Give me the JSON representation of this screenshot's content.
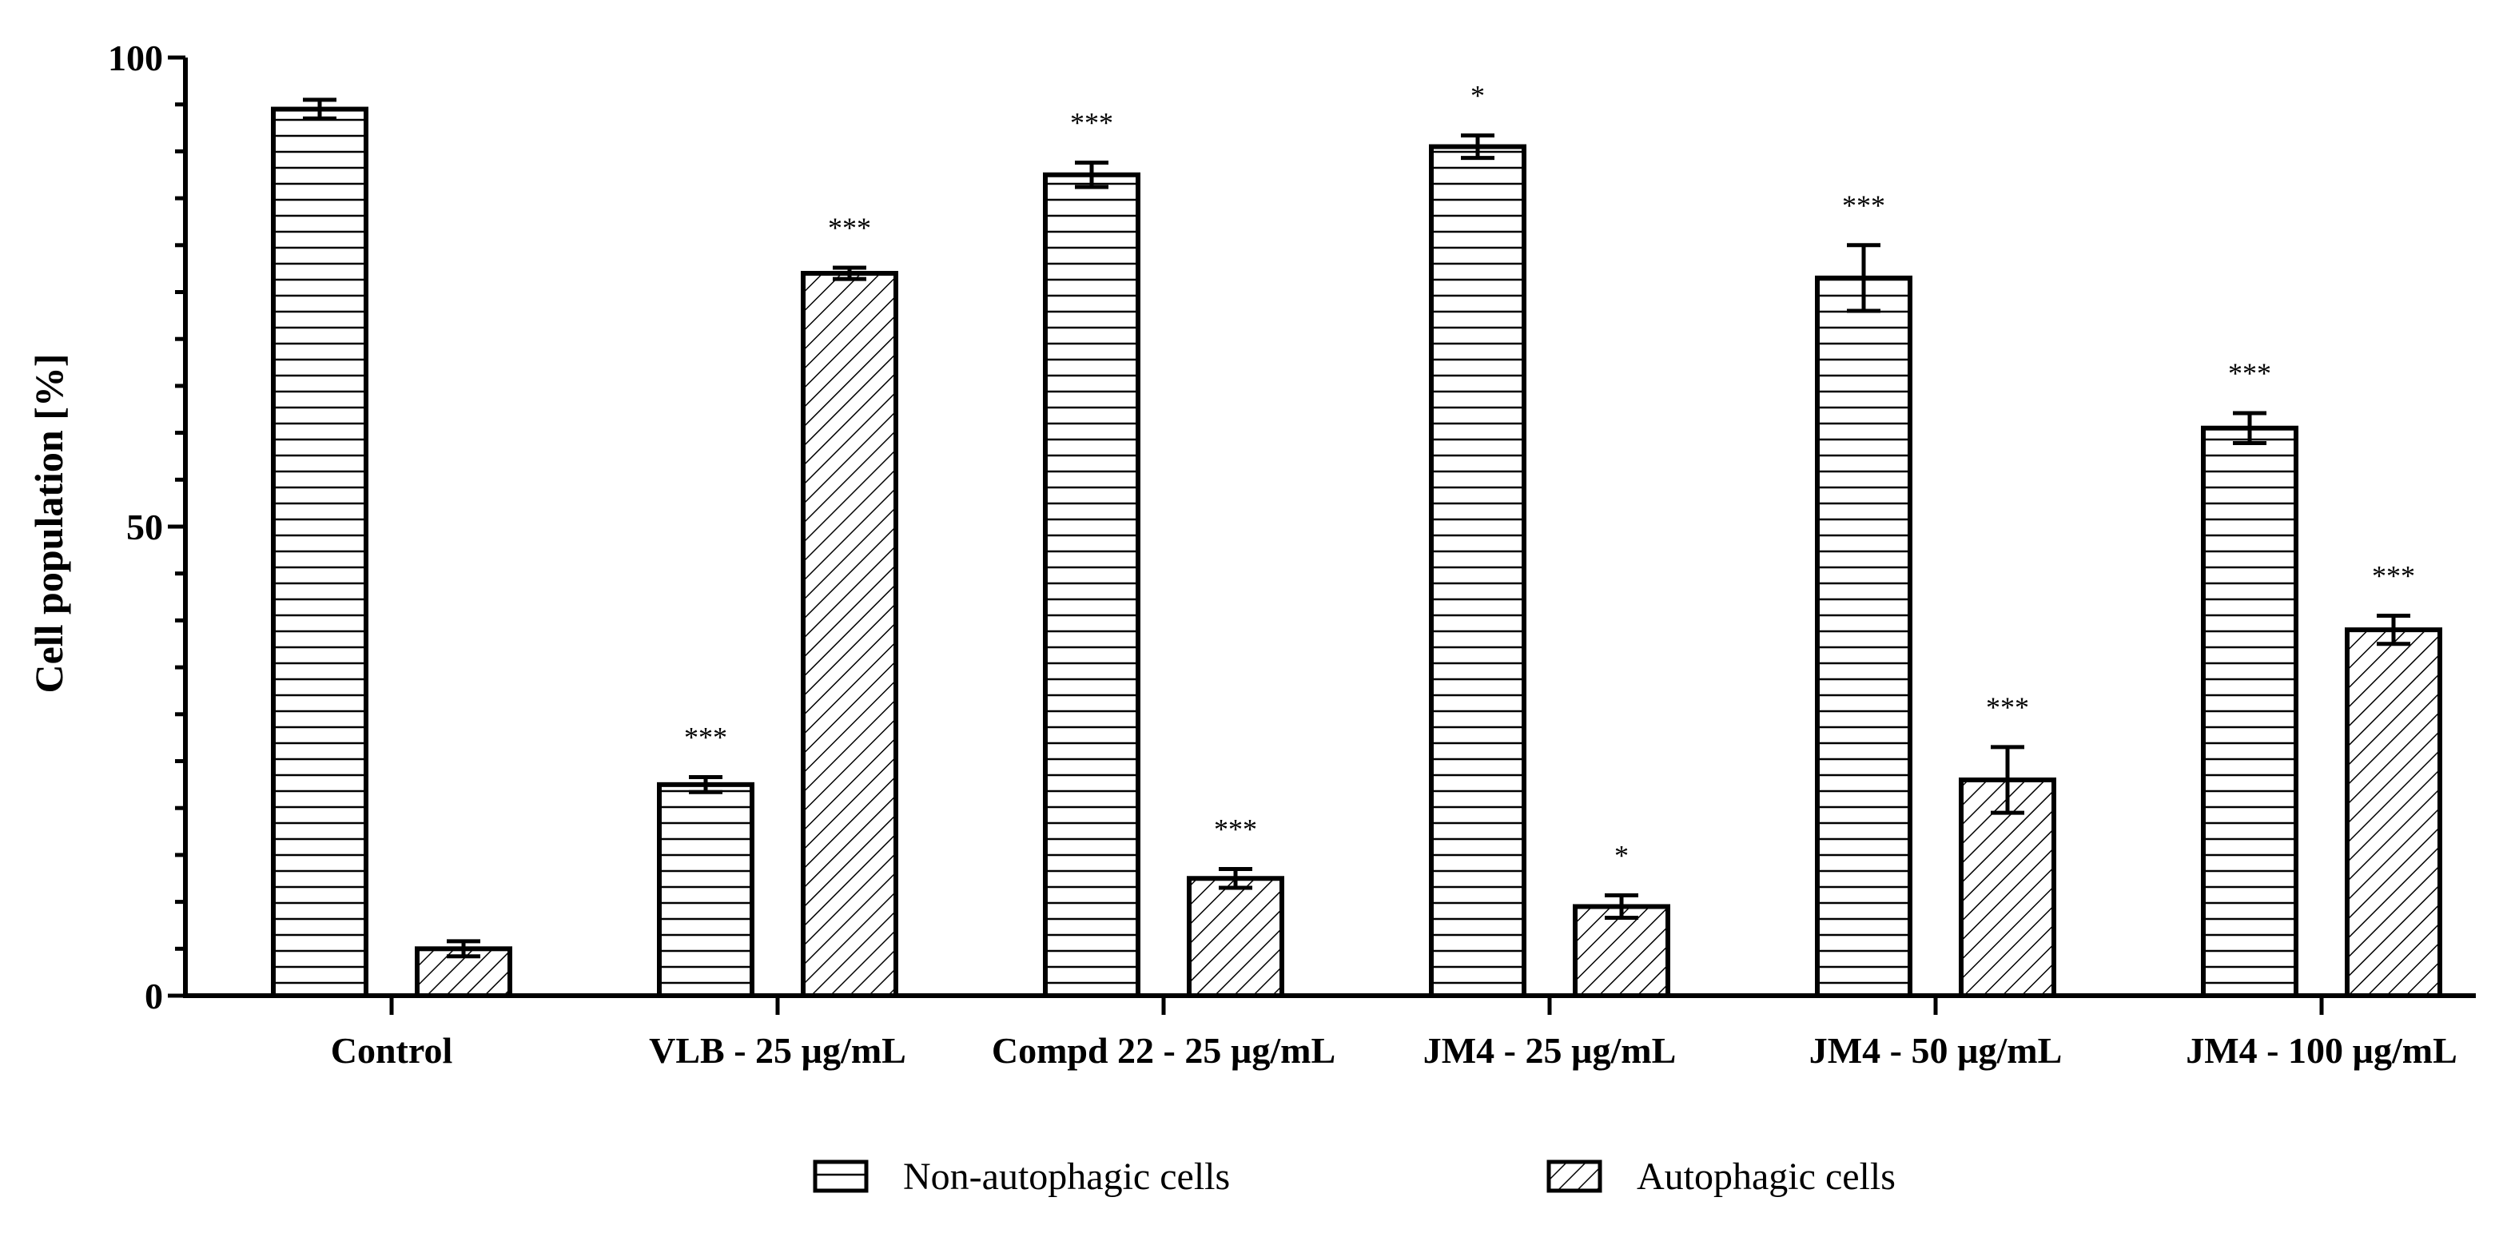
{
  "chart_data": {
    "type": "bar",
    "ylabel": "Cell population [%]",
    "xlabel": "",
    "ylim": [
      0,
      100
    ],
    "yticks": [
      0,
      50,
      100
    ],
    "categories": [
      "Control",
      "VLB - 25 µg/mL",
      "Compd 22 - 25 µg/mL",
      "JM4 - 25 µg/mL",
      "JM4 - 50 µg/mL",
      "JM4 - 100 µg/mL"
    ],
    "series": [
      {
        "name": "Non-autophagic cells",
        "pattern": "horizontal-lines",
        "values": [
          94.5,
          22.5,
          87.5,
          90.5,
          76.5,
          60.5
        ],
        "errors": [
          1.0,
          0.8,
          1.3,
          1.2,
          3.5,
          1.6
        ],
        "significance": [
          "",
          "***",
          "***",
          "*",
          "***",
          "***"
        ]
      },
      {
        "name": "Autophagic cells",
        "pattern": "diagonal-lines",
        "values": [
          5.0,
          77.0,
          12.5,
          9.5,
          23.0,
          39.0
        ],
        "errors": [
          0.8,
          0.6,
          1.0,
          1.2,
          3.5,
          1.5
        ],
        "significance": [
          "",
          "***",
          "***",
          "*",
          "***",
          "***"
        ]
      }
    ],
    "legend": "bottom-center",
    "grid": false
  },
  "colors": {
    "stroke": "#000000",
    "fill": "#ffffff"
  }
}
